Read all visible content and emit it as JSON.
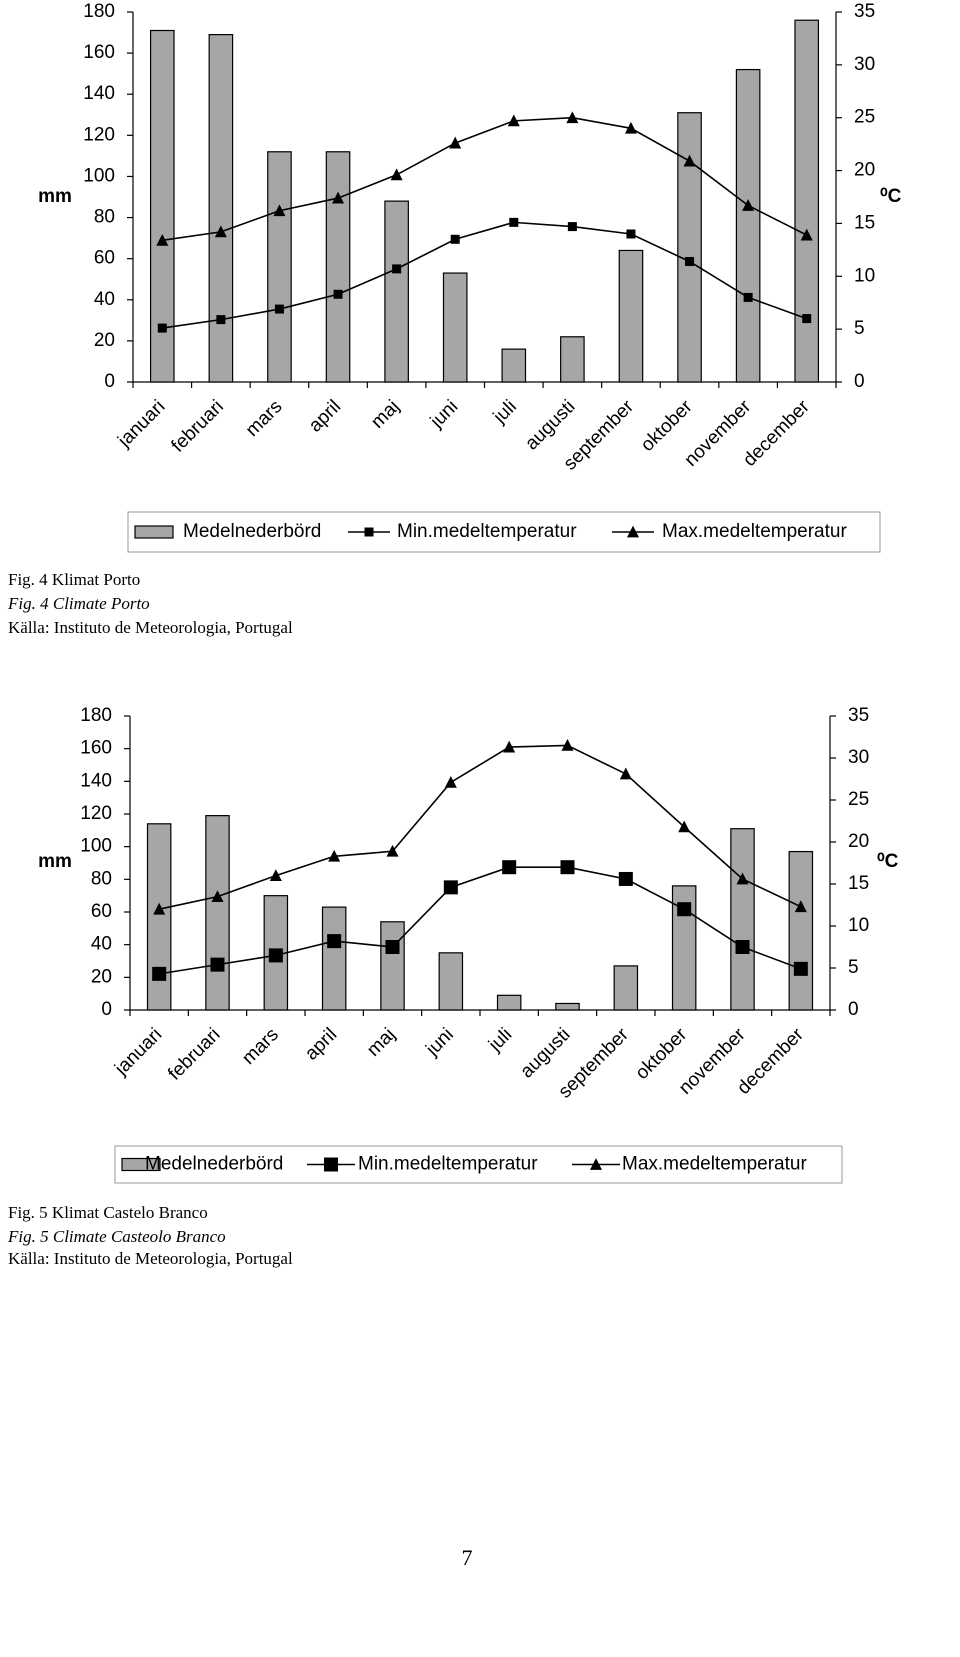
{
  "chart_data": [
    {
      "type": "bar",
      "categories": [
        "januari",
        "februari",
        "mars",
        "april",
        "maj",
        "juni",
        "juli",
        "augusti",
        "september",
        "oktober",
        "november",
        "december"
      ],
      "ylabel": "mm",
      "y2label": "⁰C",
      "ylim": [
        0,
        180
      ],
      "yticks": [
        0,
        20,
        40,
        60,
        80,
        100,
        120,
        140,
        160,
        180
      ],
      "y2lim": [
        0,
        35
      ],
      "y2ticks": [
        0,
        5,
        10,
        15,
        20,
        25,
        30,
        35
      ],
      "series": [
        {
          "name": "Medelnederbörd",
          "type": "bar",
          "color": "#a6a6a6",
          "values": [
            171,
            169,
            112,
            112,
            88,
            53,
            16,
            22,
            64,
            131,
            152,
            176
          ]
        },
        {
          "name": "Min.medeltemperatur",
          "type": "line",
          "marker": "square",
          "color": "#000000",
          "axis": "y2",
          "values": [
            5.1,
            5.9,
            6.9,
            8.3,
            10.7,
            13.5,
            15.1,
            14.7,
            14.0,
            11.4,
            8.0,
            6.0
          ]
        },
        {
          "name": "Max.medeltemperatur",
          "type": "line",
          "marker": "triangle",
          "color": "#000000",
          "axis": "y2",
          "values": [
            13.4,
            14.2,
            16.2,
            17.4,
            19.6,
            22.6,
            24.7,
            25.0,
            24.0,
            20.9,
            16.7,
            13.9
          ]
        }
      ],
      "caption": [
        "Fig. 4 Klimat Porto",
        "Fig. 4 Climate Porto",
        "Källa: Instituto de Meteorologia, Portugal"
      ]
    },
    {
      "type": "bar",
      "categories": [
        "januari",
        "februari",
        "mars",
        "april",
        "maj",
        "juni",
        "juli",
        "augusti",
        "september",
        "oktober",
        "november",
        "december"
      ],
      "ylabel": "mm",
      "y2label": "⁰C",
      "ylim": [
        0,
        180
      ],
      "yticks": [
        0,
        20,
        40,
        60,
        80,
        100,
        120,
        140,
        160,
        180
      ],
      "y2lim": [
        0,
        35
      ],
      "y2ticks": [
        0,
        5,
        10,
        15,
        20,
        25,
        30,
        35
      ],
      "series": [
        {
          "name": "Medelnederbörd",
          "type": "bar",
          "color": "#a6a6a6",
          "values": [
            114,
            119,
            70,
            63,
            54,
            35,
            9,
            4,
            27,
            76,
            111,
            97
          ]
        },
        {
          "name": "Min.medeltemperatur",
          "type": "line",
          "marker": "square",
          "color": "#000000",
          "axis": "y2",
          "values": [
            4.3,
            5.4,
            6.5,
            8.2,
            7.5,
            14.6,
            17.0,
            17.0,
            15.6,
            12.0,
            7.5,
            4.9
          ]
        },
        {
          "name": "Max.medeltemperatur",
          "type": "line",
          "marker": "triangle",
          "color": "#000000",
          "axis": "y2",
          "values": [
            12.0,
            13.5,
            16.0,
            18.3,
            18.9,
            27.1,
            31.3,
            31.5,
            28.1,
            21.8,
            15.6,
            12.3
          ]
        }
      ],
      "caption": [
        "Fig. 5 Klimat Castelo Branco",
        "Fig. 5 Climate Casteolo Branco",
        "Källa: Instituto de Meteorologia, Portugal"
      ]
    }
  ],
  "page_number": "7"
}
